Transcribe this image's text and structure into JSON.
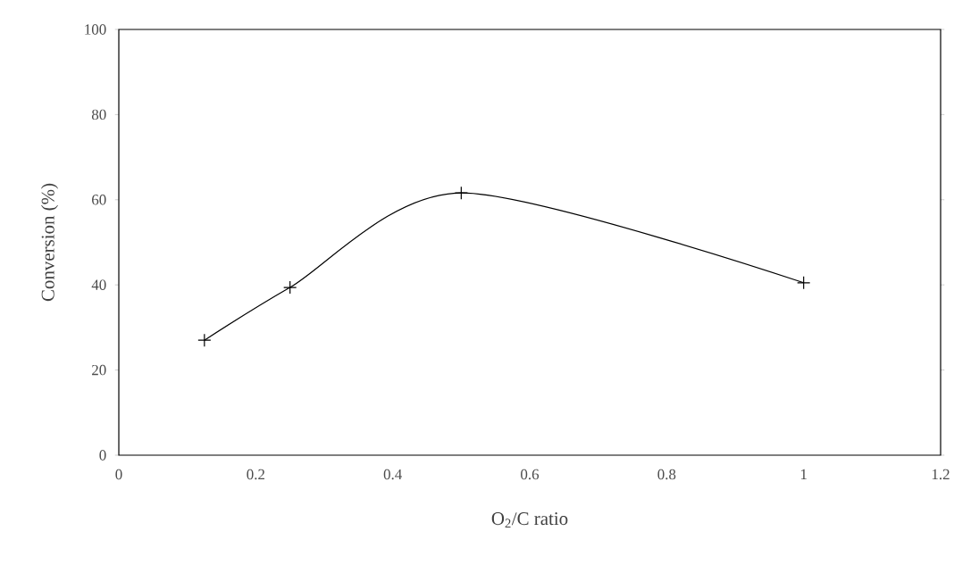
{
  "chart_data": {
    "type": "line",
    "xlabel": "O$_{2}$/C ratio",
    "ylabel": "Conversion (%)",
    "x": [
      0.125,
      0.25,
      0.5,
      1.0
    ],
    "values": [
      27,
      39.4,
      61.6,
      40.5
    ],
    "color": "#000000",
    "marker": "cross",
    "line_style": "solid",
    "xlim": [
      0,
      1.2
    ],
    "xticks": [
      0,
      0.2,
      0.4,
      0.6,
      0.8,
      1,
      1.2
    ],
    "ylim": [
      0,
      100
    ],
    "yticks": [
      0,
      20,
      40,
      60,
      80,
      100
    ],
    "grid": false
  }
}
